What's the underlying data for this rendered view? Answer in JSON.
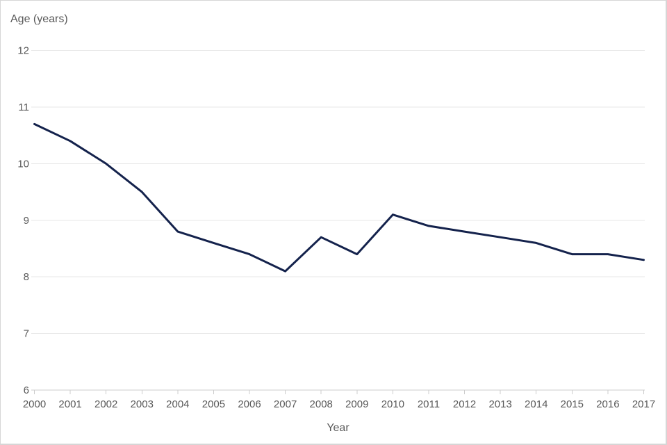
{
  "chart_data": {
    "type": "line",
    "title": "",
    "ylabel": "Age (years)",
    "xlabel": "Year",
    "x": [
      2000,
      2001,
      2002,
      2003,
      2004,
      2005,
      2006,
      2007,
      2008,
      2009,
      2010,
      2011,
      2012,
      2013,
      2014,
      2015,
      2016,
      2017
    ],
    "series": [
      {
        "name": "Age",
        "values": [
          10.7,
          10.4,
          10.0,
          9.5,
          8.8,
          8.6,
          8.4,
          8.1,
          8.7,
          8.4,
          9.1,
          8.9,
          8.8,
          8.7,
          8.6,
          8.4,
          8.4,
          8.3
        ]
      }
    ],
    "ylim": [
      6,
      12
    ],
    "yticks": [
      6,
      7,
      8,
      9,
      10,
      11,
      12
    ],
    "grid": true,
    "legend": "none",
    "colors": {
      "line": "#14224c",
      "gridline": "#e7e7e7",
      "axis": "#cccccc",
      "tick": "#cccccc",
      "text": "#595959",
      "background": "#ffffff"
    }
  }
}
